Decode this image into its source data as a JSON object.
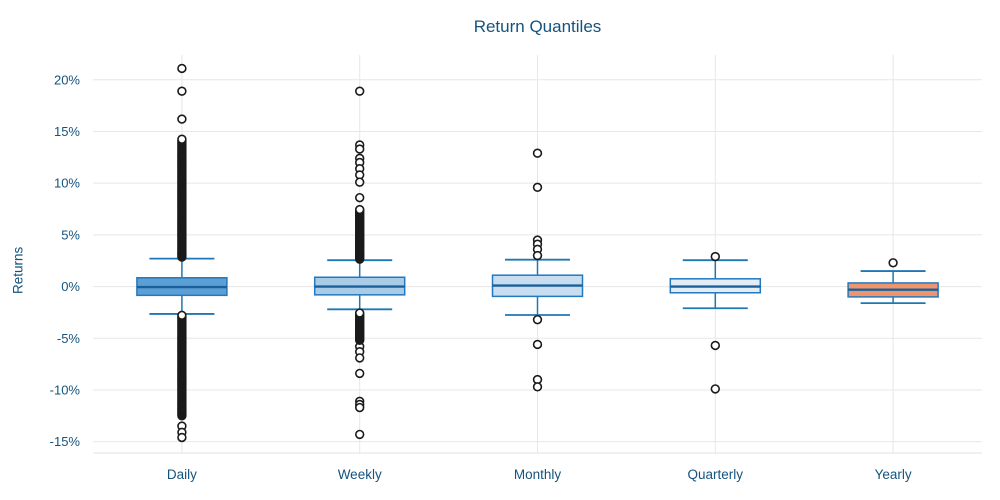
{
  "chart_data": {
    "type": "box",
    "title": "Return Quantiles",
    "xlabel": "",
    "ylabel": "Returns",
    "categories": [
      "Daily",
      "Weekly",
      "Monthly",
      "Quarterly",
      "Yearly"
    ],
    "y_ticks": [
      {
        "v": 20,
        "label": "20%"
      },
      {
        "v": 15,
        "label": "15%"
      },
      {
        "v": 10,
        "label": "10%"
      },
      {
        "v": 5,
        "label": "5%"
      },
      {
        "v": 0,
        "label": "0%"
      },
      {
        "v": -5,
        "label": "-5%"
      },
      {
        "v": -10,
        "label": "-10%"
      },
      {
        "v": -15,
        "label": "-15%"
      }
    ],
    "ylim": [
      -16.1,
      22.4
    ],
    "grid": true,
    "legend_position": "none",
    "boxes": [
      {
        "category": "Daily",
        "q1": -0.85,
        "median": -0.05,
        "q3": 0.85,
        "whisker_low": -2.65,
        "whisker_high": 2.7,
        "outliers": [
          21.1,
          18.9,
          16.2,
          -13.5,
          -14.1,
          -14.6
        ],
        "outlier_bands": [
          {
            "min": 2.85,
            "max": 14.35,
            "step": 0.12
          },
          {
            "min": -12.5,
            "max": -2.75,
            "step": 0.12
          }
        ],
        "fill": "#5C9FD4"
      },
      {
        "category": "Weekly",
        "q1": -0.8,
        "median": 0.0,
        "q3": 0.9,
        "whisker_low": -2.2,
        "whisker_high": 2.55,
        "outliers": [
          18.9,
          13.7,
          13.3,
          12.4,
          12.0,
          11.4,
          10.8,
          10.1,
          8.6,
          -5.8,
          -6.3,
          -6.9,
          -8.4,
          -11.1,
          -11.4,
          -11.7,
          -14.3
        ],
        "outlier_bands": [
          {
            "min": 2.65,
            "max": 7.45,
            "step": 0.12
          },
          {
            "min": -5.2,
            "max": -2.45,
            "step": 0.12
          }
        ],
        "fill": "#A8CBE8"
      },
      {
        "category": "Monthly",
        "q1": -0.95,
        "median": 0.1,
        "q3": 1.1,
        "whisker_low": -2.75,
        "whisker_high": 2.6,
        "outliers": [
          12.9,
          9.6,
          4.5,
          4.1,
          3.6,
          3.0,
          -3.2,
          -5.6,
          -9.0,
          -9.7
        ],
        "outlier_bands": [],
        "fill": "#C9DDF0"
      },
      {
        "category": "Quarterly",
        "q1": -0.6,
        "median": 0.0,
        "q3": 0.75,
        "whisker_low": -2.1,
        "whisker_high": 2.55,
        "outliers": [
          2.9,
          -5.7,
          -9.9
        ],
        "outlier_bands": [],
        "fill": "#E2EDF8"
      },
      {
        "category": "Yearly",
        "q1": -1.0,
        "median": -0.3,
        "q3": 0.35,
        "whisker_low": -1.6,
        "whisker_high": 1.5,
        "outliers": [
          2.3
        ],
        "outlier_bands": [],
        "fill": "#F0946C"
      }
    ],
    "style": {
      "text_color": "#15537E",
      "grid_color": "#E7E7E7",
      "axis_line_color": "#E0E0E0",
      "box_border": "#2478BE",
      "median_color": "#1B609A",
      "whisker_color": "#1F77B4",
      "outlier_stroke": "#1A1A1A",
      "outlier_fill": "#FFFFFF",
      "background": "#FFFFFF"
    }
  }
}
